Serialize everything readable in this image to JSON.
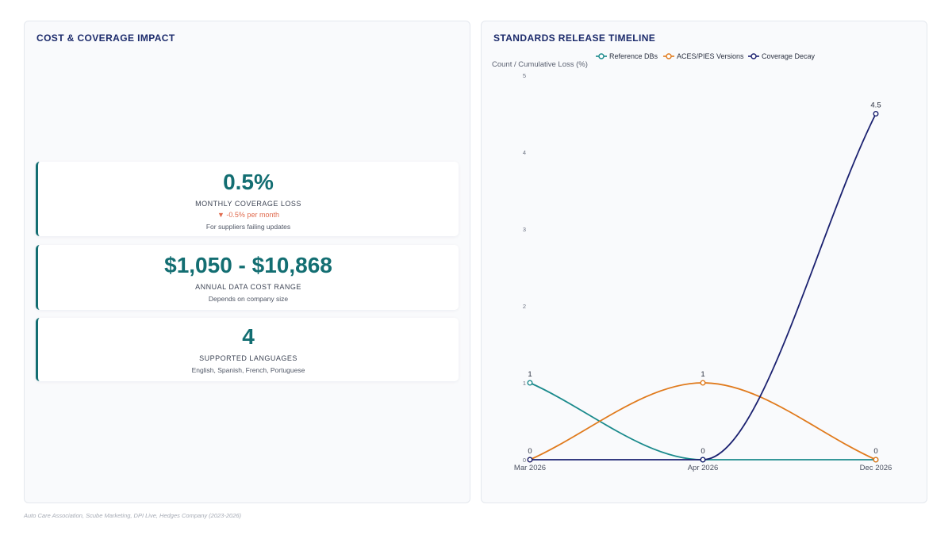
{
  "left_panel": {
    "title": "COST & COVERAGE IMPACT",
    "cards": [
      {
        "value": "0.5%",
        "label": "MONTHLY COVERAGE LOSS",
        "delta": "▼ -0.5% per month",
        "note": "For suppliers failing updates"
      },
      {
        "value": "$1,050 - $10,868",
        "label": "ANNUAL DATA COST RANGE",
        "note": "Depends on company size"
      },
      {
        "value": "4",
        "label": "SUPPORTED LANGUAGES",
        "note": "English, Spanish, French, Portuguese"
      }
    ]
  },
  "right_panel": {
    "title": "STANDARDS RELEASE TIMELINE"
  },
  "source": "Auto Care Association, Scube Marketing, DPI Live, Hedges Company (2023-2026)",
  "colors": {
    "accent": "#136e72",
    "title": "#1b2a6b",
    "delta_down": "#e06a4d"
  },
  "chart_data": {
    "type": "line",
    "title": "STANDARDS RELEASE TIMELINE",
    "ylabel": "Count / Cumulative Loss (%)",
    "xlabel": "",
    "categories": [
      "Mar 2026",
      "Apr 2026",
      "Dec 2026"
    ],
    "ylim": [
      0,
      5
    ],
    "yticks": [
      0,
      1,
      2,
      3,
      4,
      5
    ],
    "grid": false,
    "legend": "top-center",
    "smooth": true,
    "series": [
      {
        "name": "Reference DBs",
        "values": [
          1,
          0,
          0
        ],
        "color": "#1a8a8c",
        "labels": [
          true,
          false,
          false
        ]
      },
      {
        "name": "ACES/PIES Versions",
        "values": [
          0,
          1,
          0
        ],
        "color": "#e07a1c",
        "labels": [
          true,
          true,
          true
        ]
      },
      {
        "name": "Coverage Decay",
        "values": [
          0,
          0,
          4.5
        ],
        "color": "#1b2170",
        "labels": [
          false,
          true,
          true
        ]
      }
    ]
  }
}
